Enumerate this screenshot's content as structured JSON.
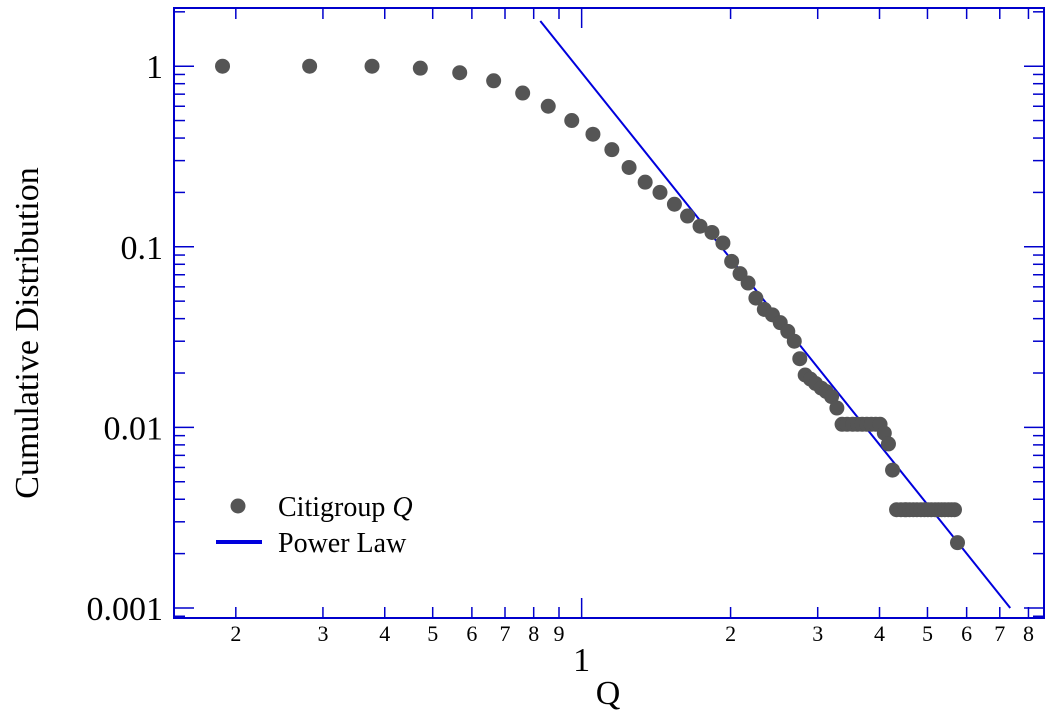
{
  "chart_data": {
    "type": "scatter",
    "xlabel": "Q",
    "ylabel": "Cumulative Distribution",
    "xscale": "log",
    "yscale": "log",
    "xlim": [
      0.15,
      8.6
    ],
    "ylim": [
      0.00088,
      2.1
    ],
    "grid": false,
    "legend_position": "bottom-left",
    "colors": {
      "frame": "#0000cc",
      "points": "#555555",
      "line": "#0000dd"
    },
    "x_major_ticks": [
      {
        "value": 1,
        "label": "1"
      }
    ],
    "x_minor_ticks": [
      {
        "value": 0.2,
        "label": "2"
      },
      {
        "value": 0.3,
        "label": "3"
      },
      {
        "value": 0.4,
        "label": "4"
      },
      {
        "value": 0.5,
        "label": "5"
      },
      {
        "value": 0.6,
        "label": "6"
      },
      {
        "value": 0.7,
        "label": "7"
      },
      {
        "value": 0.8,
        "label": "8"
      },
      {
        "value": 0.9,
        "label": "9"
      },
      {
        "value": 2,
        "label": "2"
      },
      {
        "value": 3,
        "label": "3"
      },
      {
        "value": 4,
        "label": "4"
      },
      {
        "value": 5,
        "label": "5"
      },
      {
        "value": 6,
        "label": "6"
      },
      {
        "value": 7,
        "label": "7"
      },
      {
        "value": 8,
        "label": "8"
      }
    ],
    "y_major_ticks": [
      {
        "value": 1,
        "label": "1"
      },
      {
        "value": 0.1,
        "label": "0.1"
      },
      {
        "value": 0.01,
        "label": "0.01"
      },
      {
        "value": 0.001,
        "label": "0.001"
      }
    ],
    "series": [
      {
        "name": "Citigroup Q",
        "name_parts": [
          "Citigroup ",
          "Q"
        ],
        "kind": "scatter",
        "x": [
          0.188,
          0.282,
          0.377,
          0.472,
          0.567,
          0.664,
          0.76,
          0.856,
          0.955,
          1.054,
          1.151,
          1.247,
          1.344,
          1.44,
          1.54,
          1.637,
          1.735,
          1.834,
          1.93,
          2.01,
          2.09,
          2.17,
          2.25,
          2.34,
          2.43,
          2.52,
          2.61,
          2.69,
          2.76,
          2.83,
          2.9,
          2.97,
          3.05,
          3.12,
          3.2,
          3.28,
          3.36,
          3.44,
          3.53,
          3.61,
          3.69,
          3.77,
          3.85,
          3.93,
          4.01,
          4.09,
          4.17,
          4.25,
          4.33,
          4.42,
          4.5,
          4.53,
          4.6,
          4.68,
          4.76,
          4.85,
          4.93,
          5.01,
          5.09,
          5.18,
          5.26,
          5.34,
          5.42,
          5.51,
          5.59,
          5.67,
          5.75
        ],
        "y": [
          1.0,
          1.0,
          1.0,
          0.975,
          0.92,
          0.83,
          0.71,
          0.6,
          0.5,
          0.42,
          0.345,
          0.275,
          0.228,
          0.2,
          0.172,
          0.148,
          0.13,
          0.12,
          0.105,
          0.083,
          0.071,
          0.063,
          0.052,
          0.045,
          0.042,
          0.038,
          0.034,
          0.03,
          0.024,
          0.0195,
          0.0185,
          0.0175,
          0.0165,
          0.0158,
          0.0148,
          0.0128,
          0.0104,
          0.0104,
          0.0104,
          0.0104,
          0.0104,
          0.0104,
          0.0104,
          0.0104,
          0.0104,
          0.0093,
          0.0081,
          0.0058,
          0.0035,
          0.0035,
          0.0035,
          0.0035,
          0.0035,
          0.0035,
          0.0035,
          0.0035,
          0.0035,
          0.0035,
          0.0035,
          0.0035,
          0.0035,
          0.0035,
          0.0035,
          0.0035,
          0.0035,
          0.0035,
          0.0023
        ]
      },
      {
        "name": "Power Law",
        "kind": "line",
        "x": [
          0.825,
          7.35
        ],
        "y": [
          1.78,
          0.001
        ]
      }
    ]
  }
}
